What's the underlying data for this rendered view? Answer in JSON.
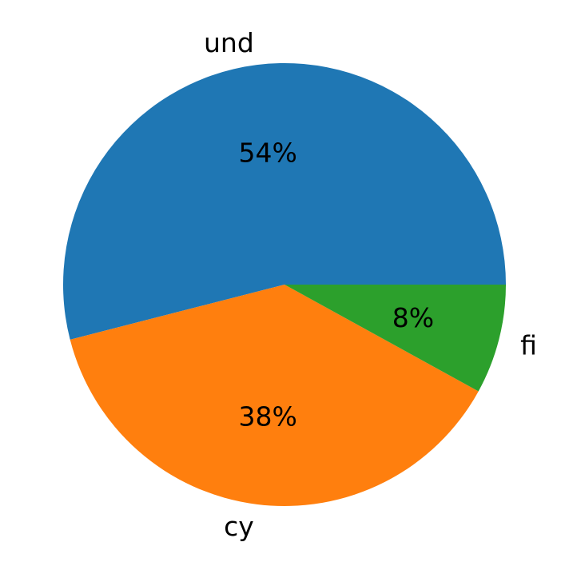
{
  "chart_data": {
    "type": "pie",
    "title": "",
    "start_angle_deg": 0,
    "direction": "counterclockwise",
    "slices": [
      {
        "label": "und",
        "value": 54,
        "pct_label": "54%",
        "color": "#1f77b4"
      },
      {
        "label": "cy",
        "value": 38,
        "pct_label": "38%",
        "color": "#ff7f0e"
      },
      {
        "label": "fi",
        "value": 8,
        "pct_label": "8%",
        "color": "#2ca02c"
      }
    ]
  }
}
